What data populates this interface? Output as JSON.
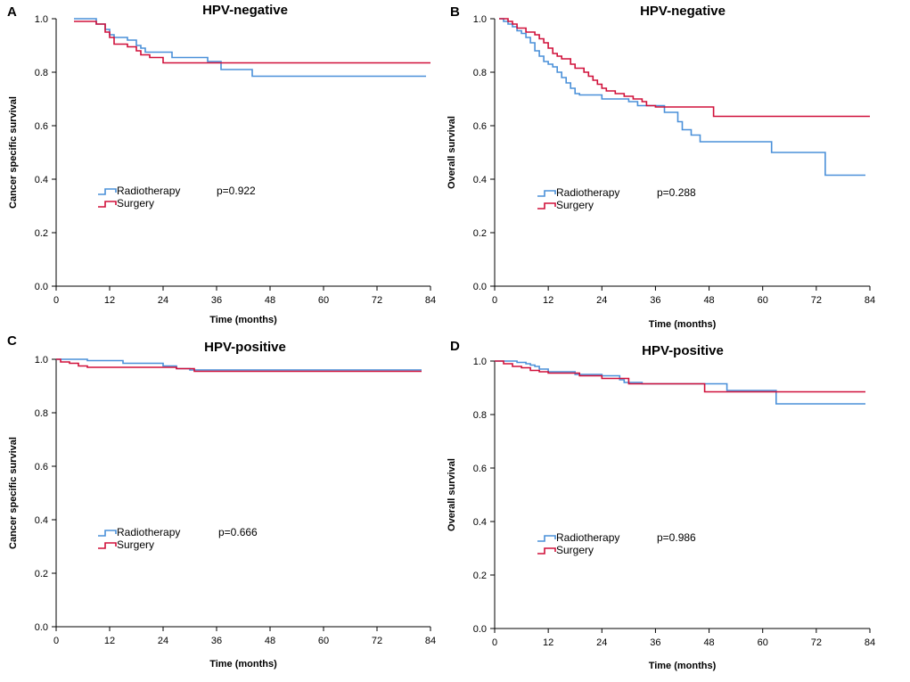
{
  "figure": {
    "panel_letters": [
      "A",
      "B",
      "C",
      "D"
    ]
  },
  "colors": {
    "radiotherapy": "#4a90d9",
    "surgery": "#d0103a",
    "axis": "#000000"
  },
  "chart_data": [
    {
      "panel": "A",
      "type": "line",
      "step": true,
      "title": "HPV-negative",
      "xlabel": "Time (months)",
      "ylabel": "Cancer specific survival",
      "xlim": [
        0,
        84
      ],
      "ylim": [
        0,
        1
      ],
      "xticks": [
        "0",
        "12",
        "24",
        "36",
        "48",
        "60",
        "72",
        "84"
      ],
      "yticks": [
        "0.0",
        "0.2",
        "0.4",
        "0.6",
        "0.8",
        "1.0"
      ],
      "p_value": "p=0.922",
      "series": [
        {
          "name": "Radiotherapy",
          "color": "#4a90d9",
          "points": [
            [
              4,
              1.0
            ],
            [
              9,
              0.98
            ],
            [
              11,
              0.96
            ],
            [
              12,
              0.94
            ],
            [
              13,
              0.93
            ],
            [
              16,
              0.92
            ],
            [
              18,
              0.9
            ],
            [
              19,
              0.89
            ],
            [
              20,
              0.875
            ],
            [
              26,
              0.875
            ],
            [
              26,
              0.855
            ],
            [
              34,
              0.855
            ],
            [
              34,
              0.84
            ],
            [
              37,
              0.84
            ],
            [
              37,
              0.81
            ],
            [
              44,
              0.81
            ],
            [
              44,
              0.785
            ],
            [
              83,
              0.785
            ]
          ]
        },
        {
          "name": "Surgery",
          "color": "#d0103a",
          "points": [
            [
              4,
              0.99
            ],
            [
              9,
              0.98
            ],
            [
              11,
              0.95
            ],
            [
              12,
              0.93
            ],
            [
              13,
              0.905
            ],
            [
              16,
              0.895
            ],
            [
              18,
              0.88
            ],
            [
              19,
              0.865
            ],
            [
              21,
              0.855
            ],
            [
              24,
              0.855
            ],
            [
              24,
              0.835
            ],
            [
              84,
              0.835
            ]
          ]
        }
      ]
    },
    {
      "panel": "B",
      "type": "line",
      "step": true,
      "title": "HPV-negative",
      "xlabel": "Time (months)",
      "ylabel": "Overall survival",
      "xlim": [
        0,
        84
      ],
      "ylim": [
        0,
        1
      ],
      "xticks": [
        "0",
        "12",
        "24",
        "36",
        "48",
        "60",
        "72",
        "84"
      ],
      "yticks": [
        "0.0",
        "0.2",
        "0.4",
        "0.6",
        "0.8",
        "1.0"
      ],
      "p_value": "p=0.288",
      "series": [
        {
          "name": "Radiotherapy",
          "color": "#4a90d9",
          "points": [
            [
              1,
              1.0
            ],
            [
              2,
              0.99
            ],
            [
              3,
              0.98
            ],
            [
              4,
              0.97
            ],
            [
              5,
              0.955
            ],
            [
              6,
              0.945
            ],
            [
              7,
              0.93
            ],
            [
              8,
              0.91
            ],
            [
              9,
              0.88
            ],
            [
              10,
              0.86
            ],
            [
              11,
              0.84
            ],
            [
              12,
              0.83
            ],
            [
              13,
              0.82
            ],
            [
              14,
              0.8
            ],
            [
              15,
              0.78
            ],
            [
              16,
              0.76
            ],
            [
              17,
              0.74
            ],
            [
              18,
              0.72
            ],
            [
              19,
              0.715
            ],
            [
              24,
              0.715
            ],
            [
              24,
              0.7
            ],
            [
              30,
              0.7
            ],
            [
              30,
              0.69
            ],
            [
              32,
              0.69
            ],
            [
              32,
              0.675
            ],
            [
              38,
              0.675
            ],
            [
              38,
              0.65
            ],
            [
              41,
              0.65
            ],
            [
              41,
              0.615
            ],
            [
              42,
              0.615
            ],
            [
              42,
              0.585
            ],
            [
              44,
              0.585
            ],
            [
              44,
              0.565
            ],
            [
              46,
              0.565
            ],
            [
              46,
              0.54
            ],
            [
              62,
              0.54
            ],
            [
              62,
              0.5
            ],
            [
              74,
              0.5
            ],
            [
              74,
              0.415
            ],
            [
              83,
              0.415
            ]
          ]
        },
        {
          "name": "Surgery",
          "color": "#d0103a",
          "points": [
            [
              1,
              1.0
            ],
            [
              3,
              0.99
            ],
            [
              4,
              0.98
            ],
            [
              5,
              0.965
            ],
            [
              7,
              0.95
            ],
            [
              9,
              0.94
            ],
            [
              10,
              0.925
            ],
            [
              11,
              0.91
            ],
            [
              12,
              0.89
            ],
            [
              13,
              0.87
            ],
            [
              14,
              0.86
            ],
            [
              15,
              0.85
            ],
            [
              17,
              0.83
            ],
            [
              18,
              0.815
            ],
            [
              20,
              0.8
            ],
            [
              21,
              0.785
            ],
            [
              22,
              0.77
            ],
            [
              23,
              0.755
            ],
            [
              24,
              0.74
            ],
            [
              25,
              0.73
            ],
            [
              27,
              0.72
            ],
            [
              29,
              0.71
            ],
            [
              31,
              0.7
            ],
            [
              33,
              0.69
            ],
            [
              34,
              0.675
            ],
            [
              36,
              0.67
            ],
            [
              49,
              0.67
            ],
            [
              49,
              0.635
            ],
            [
              84,
              0.635
            ]
          ]
        }
      ]
    },
    {
      "panel": "C",
      "type": "line",
      "step": true,
      "title": "HPV-positive",
      "xlabel": "Time (months)",
      "ylabel": "Cancer specific survival",
      "xlim": [
        0,
        84
      ],
      "ylim": [
        0,
        1
      ],
      "xticks": [
        "0",
        "12",
        "24",
        "36",
        "48",
        "60",
        "72",
        "84"
      ],
      "yticks": [
        "0.0",
        "0.2",
        "0.4",
        "0.6",
        "0.8",
        "1.0"
      ],
      "p_value": "p=0.666",
      "series": [
        {
          "name": "Radiotherapy",
          "color": "#4a90d9",
          "points": [
            [
              0,
              1.0
            ],
            [
              7,
              1.0
            ],
            [
              7,
              0.995
            ],
            [
              15,
              0.995
            ],
            [
              15,
              0.985
            ],
            [
              24,
              0.985
            ],
            [
              24,
              0.975
            ],
            [
              27,
              0.975
            ],
            [
              27,
              0.965
            ],
            [
              30,
              0.965
            ],
            [
              30,
              0.96
            ],
            [
              82,
              0.96
            ]
          ]
        },
        {
          "name": "Surgery",
          "color": "#d0103a",
          "points": [
            [
              0,
              1.0
            ],
            [
              1,
              0.99
            ],
            [
              3,
              0.985
            ],
            [
              5,
              0.975
            ],
            [
              7,
              0.97
            ],
            [
              27,
              0.97
            ],
            [
              27,
              0.965
            ],
            [
              31,
              0.965
            ],
            [
              31,
              0.955
            ],
            [
              82,
              0.955
            ]
          ]
        }
      ]
    },
    {
      "panel": "D",
      "type": "line",
      "step": true,
      "title": "HPV-positive",
      "xlabel": "Time (months)",
      "ylabel": "Overall survival",
      "xlim": [
        0,
        84
      ],
      "ylim": [
        0,
        1
      ],
      "xticks": [
        "0",
        "12",
        "24",
        "36",
        "48",
        "60",
        "72",
        "84"
      ],
      "yticks": [
        "0.0",
        "0.2",
        "0.4",
        "0.6",
        "0.8",
        "1.0"
      ],
      "p_value": "p=0.986",
      "series": [
        {
          "name": "Radiotherapy",
          "color": "#4a90d9",
          "points": [
            [
              0,
              1.0
            ],
            [
              4,
              1.0
            ],
            [
              5,
              0.995
            ],
            [
              7,
              0.99
            ],
            [
              8,
              0.985
            ],
            [
              9,
              0.98
            ],
            [
              10,
              0.97
            ],
            [
              12,
              0.96
            ],
            [
              18,
              0.96
            ],
            [
              18,
              0.95
            ],
            [
              24,
              0.95
            ],
            [
              24,
              0.945
            ],
            [
              28,
              0.945
            ],
            [
              28,
              0.93
            ],
            [
              29,
              0.92
            ],
            [
              33,
              0.92
            ],
            [
              33,
              0.915
            ],
            [
              52,
              0.915
            ],
            [
              52,
              0.89
            ],
            [
              63,
              0.89
            ],
            [
              63,
              0.84
            ],
            [
              83,
              0.84
            ]
          ]
        },
        {
          "name": "Surgery",
          "color": "#d0103a",
          "points": [
            [
              0,
              1.0
            ],
            [
              2,
              0.99
            ],
            [
              4,
              0.98
            ],
            [
              6,
              0.975
            ],
            [
              8,
              0.965
            ],
            [
              10,
              0.96
            ],
            [
              12,
              0.955
            ],
            [
              19,
              0.955
            ],
            [
              19,
              0.945
            ],
            [
              24,
              0.945
            ],
            [
              24,
              0.935
            ],
            [
              30,
              0.935
            ],
            [
              30,
              0.915
            ],
            [
              47,
              0.915
            ],
            [
              47,
              0.885
            ],
            [
              83,
              0.885
            ]
          ]
        }
      ]
    }
  ]
}
